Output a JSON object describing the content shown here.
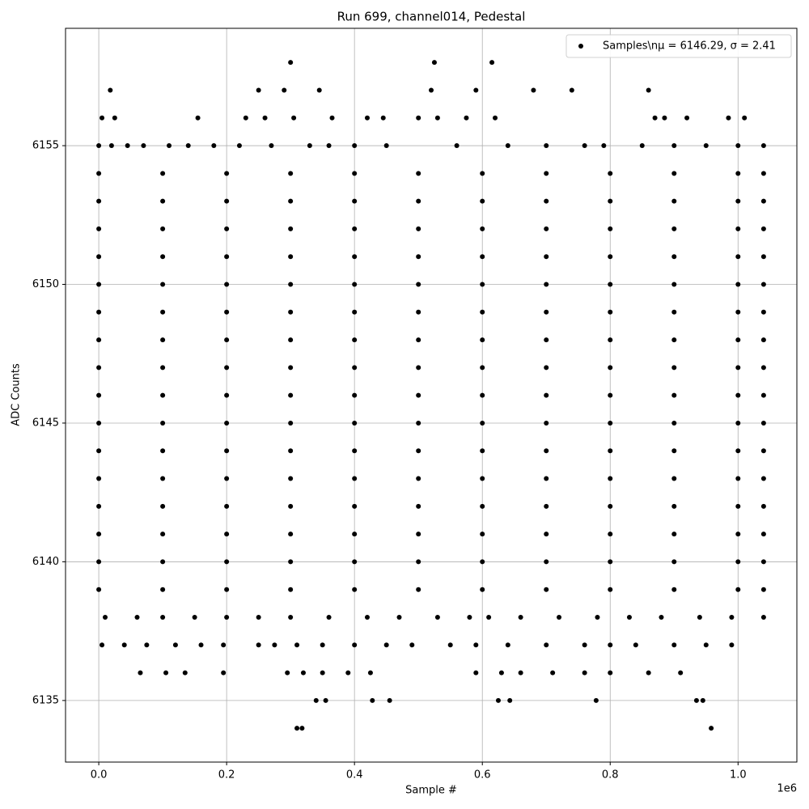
{
  "chart_data": {
    "type": "scatter",
    "title": "Run 699, channel014, Pedestal",
    "xlabel": "Sample #",
    "ylabel": "ADC Counts",
    "x_offset_label": "1e6",
    "grid": true,
    "legend": "upper right",
    "xlim": [
      -52000,
      1092000
    ],
    "ylim": [
      6132.78,
      6159.23
    ],
    "xticks": [
      {
        "value": 0,
        "label": "0.0"
      },
      {
        "value": 200000,
        "label": "0.2"
      },
      {
        "value": 400000,
        "label": "0.4"
      },
      {
        "value": 600000,
        "label": "0.6"
      },
      {
        "value": 800000,
        "label": "0.8"
      },
      {
        "value": 1000000,
        "label": "1.0"
      }
    ],
    "yticks": [
      6135,
      6140,
      6145,
      6150,
      6155
    ],
    "series": [
      {
        "name": "Samples\\nμ = 6146.29, σ = 2.41",
        "color": "#000000",
        "x": [
          0,
          100000,
          200000,
          300000,
          400000,
          500000,
          600000,
          700000,
          800000,
          900000,
          1000000,
          1040000,
          0,
          100000,
          200000,
          300000,
          400000,
          500000,
          600000,
          700000,
          800000,
          900000,
          1000000,
          1040000,
          0,
          100000,
          200000,
          300000,
          400000,
          500000,
          600000,
          700000,
          800000,
          900000,
          1000000,
          1040000,
          0,
          100000,
          200000,
          300000,
          400000,
          500000,
          600000,
          700000,
          800000,
          900000,
          1000000,
          1040000,
          0,
          100000,
          200000,
          300000,
          400000,
          500000,
          600000,
          700000,
          800000,
          900000,
          1000000,
          1040000,
          0,
          100000,
          200000,
          300000,
          400000,
          500000,
          600000,
          700000,
          800000,
          900000,
          1000000,
          1040000,
          0,
          100000,
          200000,
          300000,
          400000,
          500000,
          600000,
          700000,
          800000,
          900000,
          1000000,
          1040000,
          0,
          100000,
          200000,
          300000,
          400000,
          500000,
          600000,
          700000,
          800000,
          900000,
          1000000,
          1040000,
          0,
          100000,
          200000,
          300000,
          400000,
          500000,
          600000,
          700000,
          800000,
          900000,
          1000000,
          1040000,
          0,
          100000,
          200000,
          300000,
          400000,
          500000,
          600000,
          700000,
          800000,
          900000,
          1000000,
          1040000,
          0,
          100000,
          200000,
          300000,
          400000,
          500000,
          600000,
          700000,
          800000,
          900000,
          1000000,
          1040000,
          0,
          100000,
          200000,
          300000,
          400000,
          500000,
          600000,
          700000,
          800000,
          900000,
          1000000,
          1040000,
          0,
          100000,
          200000,
          300000,
          400000,
          500000,
          600000,
          700000,
          800000,
          900000,
          1000000,
          1040000,
          0,
          100000,
          200000,
          300000,
          400000,
          500000,
          600000,
          700000,
          800000,
          900000,
          1000000,
          1040000,
          0,
          100000,
          200000,
          300000,
          400000,
          500000,
          600000,
          700000,
          800000,
          900000,
          1000000,
          1040000,
          0,
          100000,
          200000,
          300000,
          400000,
          500000,
          600000,
          700000,
          800000,
          900000,
          1000000,
          1040000,
          300000,
          525000,
          615000,
          18000,
          250000,
          290000,
          345000,
          520000,
          590000,
          680000,
          740000,
          860000,
          5000,
          25000,
          155000,
          230000,
          260000,
          305000,
          365000,
          420000,
          445000,
          500000,
          530000,
          575000,
          620000,
          870000,
          885000,
          920000,
          985000,
          1010000,
          0,
          20000,
          45000,
          70000,
          110000,
          140000,
          180000,
          220000,
          270000,
          330000,
          360000,
          400000,
          450000,
          560000,
          640000,
          700000,
          760000,
          790000,
          850000,
          900000,
          950000,
          1000000,
          1040000,
          10000,
          60000,
          100000,
          150000,
          200000,
          250000,
          300000,
          360000,
          420000,
          470000,
          530000,
          580000,
          610000,
          660000,
          720000,
          780000,
          830000,
          880000,
          940000,
          990000,
          1040000,
          5000,
          40000,
          75000,
          120000,
          160000,
          195000,
          250000,
          275000,
          310000,
          350000,
          400000,
          450000,
          490000,
          550000,
          590000,
          640000,
          700000,
          760000,
          800000,
          840000,
          900000,
          950000,
          990000,
          65000,
          105000,
          135000,
          195000,
          295000,
          320000,
          350000,
          390000,
          425000,
          590000,
          630000,
          660000,
          710000,
          760000,
          800000,
          860000,
          910000,
          340000,
          355000,
          428000,
          455000,
          625000,
          643000,
          778000,
          935000,
          945000,
          310000,
          318000,
          958000
        ],
        "y": [
          6139,
          6139,
          6139,
          6139,
          6139,
          6139,
          6139,
          6139,
          6139,
          6139,
          6139,
          6139,
          6140,
          6140,
          6140,
          6140,
          6140,
          6140,
          6140,
          6140,
          6140,
          6140,
          6140,
          6140,
          6141,
          6141,
          6141,
          6141,
          6141,
          6141,
          6141,
          6141,
          6141,
          6141,
          6141,
          6141,
          6142,
          6142,
          6142,
          6142,
          6142,
          6142,
          6142,
          6142,
          6142,
          6142,
          6142,
          6142,
          6143,
          6143,
          6143,
          6143,
          6143,
          6143,
          6143,
          6143,
          6143,
          6143,
          6143,
          6143,
          6144,
          6144,
          6144,
          6144,
          6144,
          6144,
          6144,
          6144,
          6144,
          6144,
          6144,
          6144,
          6145,
          6145,
          6145,
          6145,
          6145,
          6145,
          6145,
          6145,
          6145,
          6145,
          6145,
          6145,
          6146,
          6146,
          6146,
          6146,
          6146,
          6146,
          6146,
          6146,
          6146,
          6146,
          6146,
          6146,
          6147,
          6147,
          6147,
          6147,
          6147,
          6147,
          6147,
          6147,
          6147,
          6147,
          6147,
          6147,
          6148,
          6148,
          6148,
          6148,
          6148,
          6148,
          6148,
          6148,
          6148,
          6148,
          6148,
          6148,
          6149,
          6149,
          6149,
          6149,
          6149,
          6149,
          6149,
          6149,
          6149,
          6149,
          6149,
          6149,
          6150,
          6150,
          6150,
          6150,
          6150,
          6150,
          6150,
          6150,
          6150,
          6150,
          6150,
          6150,
          6151,
          6151,
          6151,
          6151,
          6151,
          6151,
          6151,
          6151,
          6151,
          6151,
          6151,
          6151,
          6152,
          6152,
          6152,
          6152,
          6152,
          6152,
          6152,
          6152,
          6152,
          6152,
          6152,
          6152,
          6153,
          6153,
          6153,
          6153,
          6153,
          6153,
          6153,
          6153,
          6153,
          6153,
          6153,
          6153,
          6154,
          6154,
          6154,
          6154,
          6154,
          6154,
          6154,
          6154,
          6154,
          6154,
          6154,
          6154,
          6158,
          6158,
          6158,
          6157,
          6157,
          6157,
          6157,
          6157,
          6157,
          6157,
          6157,
          6157,
          6156,
          6156,
          6156,
          6156,
          6156,
          6156,
          6156,
          6156,
          6156,
          6156,
          6156,
          6156,
          6156,
          6156,
          6156,
          6156,
          6156,
          6156,
          6155,
          6155,
          6155,
          6155,
          6155,
          6155,
          6155,
          6155,
          6155,
          6155,
          6155,
          6155,
          6155,
          6155,
          6155,
          6155,
          6155,
          6155,
          6155,
          6155,
          6155,
          6155,
          6155,
          6138,
          6138,
          6138,
          6138,
          6138,
          6138,
          6138,
          6138,
          6138,
          6138,
          6138,
          6138,
          6138,
          6138,
          6138,
          6138,
          6138,
          6138,
          6138,
          6138,
          6138,
          6137,
          6137,
          6137,
          6137,
          6137,
          6137,
          6137,
          6137,
          6137,
          6137,
          6137,
          6137,
          6137,
          6137,
          6137,
          6137,
          6137,
          6137,
          6137,
          6137,
          6137,
          6137,
          6137,
          6136,
          6136,
          6136,
          6136,
          6136,
          6136,
          6136,
          6136,
          6136,
          6136,
          6136,
          6136,
          6136,
          6136,
          6136,
          6136,
          6136,
          6135,
          6135,
          6135,
          6135,
          6135,
          6135,
          6135,
          6135,
          6135,
          6134,
          6134,
          6134
        ]
      }
    ]
  }
}
